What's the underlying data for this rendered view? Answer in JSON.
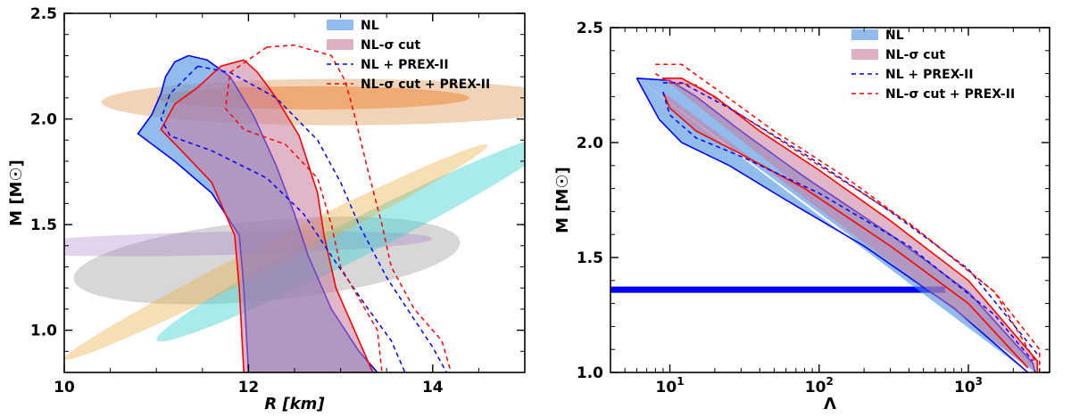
{
  "chart_data": [
    {
      "type": "area",
      "xlabel": "R [km]",
      "ylabel": "M [M☉]",
      "xlim": [
        10,
        15
      ],
      "ylim": [
        0.8,
        2.5
      ],
      "xticks": [
        {
          "v": 10,
          "label": "10"
        },
        {
          "v": 12,
          "label": "12"
        },
        {
          "v": 14,
          "label": "14"
        }
      ],
      "yticks": [
        {
          "v": 1.0,
          "label": "1.0"
        },
        {
          "v": 1.5,
          "label": "1.5"
        },
        {
          "v": 2.0,
          "label": "2.0"
        },
        {
          "v": 2.5,
          "label": "2.5"
        }
      ],
      "legend": [
        {
          "label": "NL",
          "style": "patch",
          "color": "#4a90e2"
        },
        {
          "label": "NL-σ cut",
          "style": "patch",
          "color": "#c87a9a"
        },
        {
          "label": "NL + PREX-II",
          "style": "dashed",
          "color": "#0000ff"
        },
        {
          "label": "NL-σ cut + PREX-II",
          "style": "dashed",
          "color": "#ff0000"
        }
      ],
      "constraints": [
        {
          "name": "gray",
          "color": "#8c8c8c",
          "center": [
            12.2,
            1.33
          ],
          "radius": [
            2.1,
            0.19
          ],
          "tilt": 0.04,
          "opacity": 0.35
        },
        {
          "name": "violet",
          "color": "#a070c0",
          "center": [
            11.6,
            1.41
          ],
          "radius": [
            2.4,
            0.055
          ],
          "tilt": 0.01,
          "opacity": 0.3
        },
        {
          "name": "cyan",
          "color": "#40d0d0",
          "center": [
            13.2,
            1.44
          ],
          "radius": [
            2.2,
            0.1
          ],
          "tilt": 0.22,
          "opacity": 0.45
        },
        {
          "name": "yellow",
          "color": "#e8b040",
          "center": [
            12.3,
            1.37
          ],
          "radius": [
            2.3,
            0.07
          ],
          "tilt": 0.22,
          "opacity": 0.4
        },
        {
          "name": "orange-wide",
          "color": "#e0a060",
          "center": [
            13.0,
            2.08
          ],
          "radius": [
            2.6,
            0.11
          ],
          "tilt": 0.0,
          "opacity": 0.45
        },
        {
          "name": "orange-core",
          "color": "#f08030",
          "center": [
            12.7,
            2.1
          ],
          "radius": [
            1.7,
            0.055
          ],
          "tilt": 0.0,
          "opacity": 0.5
        }
      ],
      "bands": [
        {
          "name": "NL",
          "fill": "#4a90e2",
          "stroke": "#0000ff",
          "opacity": 0.6,
          "left": [
            [
              12.0,
              0.8
            ],
            [
              11.95,
              1.2
            ],
            [
              11.9,
              1.45
            ],
            [
              11.6,
              1.65
            ],
            [
              11.2,
              1.8
            ],
            [
              10.8,
              1.93
            ],
            [
              10.95,
              2.02
            ],
            [
              11.05,
              2.12
            ],
            [
              11.1,
              2.2
            ],
            [
              11.2,
              2.27
            ],
            [
              11.35,
              2.3
            ]
          ],
          "right": [
            [
              11.35,
              2.3
            ],
            [
              11.55,
              2.28
            ],
            [
              11.8,
              2.2
            ],
            [
              12.05,
              2.02
            ],
            [
              12.3,
              1.78
            ],
            [
              12.5,
              1.55
            ],
            [
              12.65,
              1.35
            ],
            [
              12.9,
              1.1
            ],
            [
              13.2,
              0.9
            ],
            [
              13.4,
              0.8
            ]
          ]
        },
        {
          "name": "NL-σ cut",
          "fill": "#c87a9a",
          "stroke": "#ff0000",
          "opacity": 0.55,
          "left": [
            [
              11.95,
              0.8
            ],
            [
              11.9,
              1.2
            ],
            [
              11.85,
              1.45
            ],
            [
              11.6,
              1.7
            ],
            [
              11.25,
              1.86
            ],
            [
              11.05,
              1.95
            ],
            [
              11.2,
              2.07
            ],
            [
              11.45,
              2.15
            ],
            [
              11.7,
              2.25
            ],
            [
              11.95,
              2.28
            ]
          ],
          "right": [
            [
              11.95,
              2.28
            ],
            [
              12.1,
              2.22
            ],
            [
              12.3,
              2.1
            ],
            [
              12.55,
              1.92
            ],
            [
              12.75,
              1.65
            ],
            [
              12.82,
              1.45
            ],
            [
              12.95,
              1.2
            ],
            [
              13.15,
              1.0
            ],
            [
              13.35,
              0.8
            ]
          ]
        }
      ],
      "dashed": [
        {
          "name": "NL + PREX-II",
          "color": "#0000ff",
          "left": [
            [
              11.45,
              2.25
            ],
            [
              11.15,
              2.12
            ],
            [
              11.05,
              2.0
            ],
            [
              11.15,
              1.92
            ],
            [
              11.6,
              1.85
            ],
            [
              12.2,
              1.72
            ],
            [
              12.6,
              1.55
            ],
            [
              12.95,
              1.32
            ],
            [
              13.3,
              1.1
            ],
            [
              13.55,
              0.95
            ],
            [
              13.7,
              0.8
            ]
          ],
          "right": [
            [
              11.45,
              2.25
            ],
            [
              11.8,
              2.22
            ],
            [
              12.3,
              2.1
            ],
            [
              12.75,
              1.9
            ],
            [
              13.0,
              1.7
            ],
            [
              13.2,
              1.5
            ],
            [
              13.5,
              1.25
            ],
            [
              13.8,
              1.05
            ],
            [
              14.0,
              0.92
            ],
            [
              14.15,
              0.8
            ]
          ]
        },
        {
          "name": "NL-σ cut + PREX-II",
          "color": "#ff0000",
          "left": [
            [
              12.2,
              2.34
            ],
            [
              11.8,
              2.22
            ],
            [
              11.75,
              2.05
            ],
            [
              11.95,
              1.95
            ],
            [
              12.4,
              1.88
            ],
            [
              12.75,
              1.72
            ],
            [
              12.9,
              1.5
            ],
            [
              13.0,
              1.3
            ],
            [
              13.2,
              1.15
            ],
            [
              13.4,
              1.0
            ],
            [
              13.45,
              0.8
            ]
          ],
          "right": [
            [
              12.2,
              2.34
            ],
            [
              12.5,
              2.35
            ],
            [
              12.9,
              2.3
            ],
            [
              13.05,
              2.18
            ],
            [
              13.15,
              2.02
            ],
            [
              13.3,
              1.75
            ],
            [
              13.45,
              1.5
            ],
            [
              13.55,
              1.3
            ],
            [
              13.8,
              1.1
            ],
            [
              14.1,
              0.95
            ],
            [
              14.2,
              0.8
            ]
          ]
        }
      ]
    },
    {
      "type": "area",
      "xlabel": "Λ",
      "ylabel": "M [M☉]",
      "xscale": "log",
      "xlim": [
        4,
        3500
      ],
      "ylim": [
        1.0,
        2.5
      ],
      "xticks": [
        {
          "v": 10,
          "base": "10",
          "exp": "1"
        },
        {
          "v": 100,
          "base": "10",
          "exp": "2"
        },
        {
          "v": 1000,
          "base": "10",
          "exp": "3"
        }
      ],
      "yticks": [
        {
          "v": 1.0,
          "label": "1.0"
        },
        {
          "v": 1.5,
          "label": "1.5"
        },
        {
          "v": 2.0,
          "label": "2.0"
        },
        {
          "v": 2.5,
          "label": "2.5"
        }
      ],
      "legend": [
        {
          "label": "NL",
          "style": "patch",
          "color": "#4a90e2"
        },
        {
          "label": "NL-σ cut",
          "style": "patch",
          "color": "#c87a9a"
        },
        {
          "label": "NL + PREX-II",
          "style": "dashed",
          "color": "#0000ff"
        },
        {
          "label": "NL-σ cut + PREX-II",
          "style": "dashed",
          "color": "#ff0000"
        }
      ],
      "hline": {
        "y": 1.36,
        "x1": 4,
        "x2": 700,
        "color": "#0000ff"
      },
      "bands": [
        {
          "name": "NL",
          "fill": "#4a90e2",
          "stroke": "#0000ff",
          "opacity": 0.6,
          "left": [
            [
              6,
              2.28
            ],
            [
              7,
              2.2
            ],
            [
              8.5,
              2.1
            ],
            [
              12,
              2.0
            ],
            [
              25,
              1.9
            ],
            [
              60,
              1.75
            ],
            [
              200,
              1.55
            ],
            [
              800,
              1.28
            ],
            [
              2500,
              1.0
            ]
          ],
          "right": [
            [
              6,
              2.28
            ],
            [
              10,
              2.27
            ],
            [
              15,
              2.2
            ],
            [
              30,
              2.05
            ],
            [
              80,
              1.85
            ],
            [
              300,
              1.6
            ],
            [
              1000,
              1.35
            ],
            [
              2700,
              1.04
            ],
            [
              2800,
              1.0
            ]
          ]
        },
        {
          "name": "NL-σ cut",
          "fill": "#c87a9a",
          "stroke": "#ff0000",
          "opacity": 0.55,
          "left": [
            [
              9,
              2.22
            ],
            [
              10,
              2.15
            ],
            [
              15,
              2.05
            ],
            [
              30,
              1.95
            ],
            [
              80,
              1.8
            ],
            [
              300,
              1.55
            ],
            [
              1000,
              1.3
            ],
            [
              2500,
              1.02
            ]
          ],
          "right": [
            [
              9,
              2.28
            ],
            [
              12,
              2.28
            ],
            [
              20,
              2.2
            ],
            [
              40,
              2.05
            ],
            [
              100,
              1.88
            ],
            [
              300,
              1.66
            ],
            [
              1000,
              1.4
            ],
            [
              2900,
              1.05
            ],
            [
              2900,
              1.0
            ]
          ]
        }
      ],
      "dashed": [
        {
          "name": "NL + PREX-II",
          "color": "#0000ff",
          "left": [
            [
              9,
              2.22
            ],
            [
              10,
              2.12
            ],
            [
              15,
              2.02
            ],
            [
              30,
              1.94
            ],
            [
              100,
              1.78
            ],
            [
              400,
              1.55
            ],
            [
              1500,
              1.25
            ],
            [
              2700,
              1.05
            ]
          ],
          "right": [
            [
              9,
              2.26
            ],
            [
              12,
              2.26
            ],
            [
              25,
              2.15
            ],
            [
              80,
              1.95
            ],
            [
              300,
              1.7
            ],
            [
              1000,
              1.45
            ],
            [
              2900,
              1.08
            ]
          ]
        },
        {
          "name": "NL-σ cut + PREX-II",
          "color": "#ff0000",
          "left": [
            [
              8,
              2.3
            ],
            [
              10,
              2.26
            ],
            [
              15,
              2.25
            ],
            [
              30,
              2.12
            ],
            [
              100,
              1.9
            ],
            [
              400,
              1.65
            ],
            [
              1500,
              1.35
            ],
            [
              2800,
              1.05
            ]
          ],
          "right": [
            [
              8,
              2.34
            ],
            [
              12,
              2.34
            ],
            [
              24,
              2.2
            ],
            [
              50,
              2.05
            ],
            [
              150,
              1.85
            ],
            [
              500,
              1.6
            ],
            [
              1500,
              1.35
            ],
            [
              3000,
              1.1
            ],
            [
              3000,
              1.0
            ]
          ]
        }
      ]
    }
  ]
}
